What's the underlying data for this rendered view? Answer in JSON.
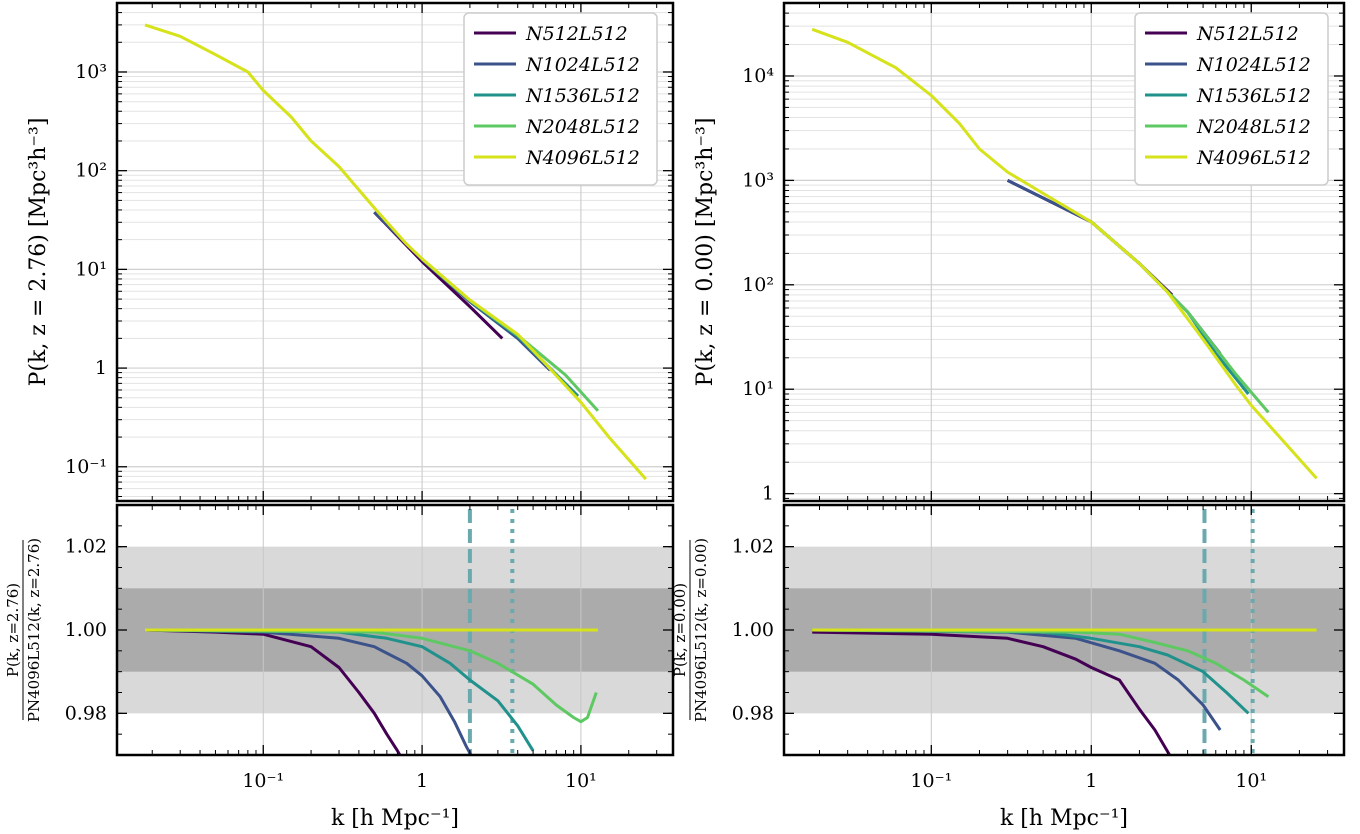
{
  "colors": {
    "N512L512": "#440154",
    "N1024L512": "#3b528b",
    "N1536L512": "#21918c",
    "N2048L512": "#5ec962",
    "N4096L512": "#d6e21a",
    "band_outer": "#d9d9d9",
    "band_inner": "#ababab",
    "vline": "#6aa9ad"
  },
  "chart_data": [
    {
      "type": "line",
      "panel": "left-top",
      "xscale": "log",
      "yscale": "log",
      "xlim": [
        0.012,
        38
      ],
      "ylim": [
        0.045,
        5000
      ],
      "ylabel": "P(k, z = 2.76) [Mpc³h⁻³]",
      "yticks": [
        {
          "v": 1000,
          "label": "10³"
        },
        {
          "v": 100,
          "label": "10²"
        },
        {
          "v": 10,
          "label": "10¹"
        },
        {
          "v": 1,
          "label": "1"
        },
        {
          "v": 0.1,
          "label": "10⁻¹"
        }
      ],
      "legend_position": "top-right",
      "series": [
        {
          "name": "N512L512",
          "k": [
            0.5,
            1,
            2,
            3.2
          ],
          "P": [
            38,
            12,
            4.2,
            2.0
          ]
        },
        {
          "name": "N1024L512",
          "k": [
            0.5,
            1,
            2,
            4,
            6.4
          ],
          "P": [
            38,
            12.6,
            4.7,
            2.0,
            0.95
          ]
        },
        {
          "name": "N1536L512",
          "k": [
            1,
            2,
            4,
            6,
            9.6
          ],
          "P": [
            12.7,
            4.8,
            2.1,
            1.1,
            0.52
          ]
        },
        {
          "name": "N2048L512",
          "k": [
            1,
            2,
            4,
            8,
            12.8
          ],
          "P": [
            12.7,
            4.85,
            2.15,
            0.85,
            0.37
          ]
        },
        {
          "name": "N4096L512",
          "k": [
            0.018,
            0.03,
            0.05,
            0.08,
            0.1,
            0.15,
            0.2,
            0.3,
            0.5,
            0.8,
            1,
            2,
            4,
            6,
            10,
            15,
            25.6
          ],
          "P": [
            3000,
            2300,
            1500,
            1000,
            650,
            350,
            200,
            110,
            42,
            18,
            12.8,
            4.9,
            2.2,
            1.1,
            0.45,
            0.2,
            0.075
          ]
        }
      ]
    },
    {
      "type": "line",
      "panel": "right-top",
      "xscale": "log",
      "yscale": "log",
      "xlim": [
        0.012,
        38
      ],
      "ylim": [
        0.85,
        50000
      ],
      "ylabel": "P(k, z = 0.00) [Mpc³h⁻³]",
      "yticks": [
        {
          "v": 10000,
          "label": "10⁴"
        },
        {
          "v": 1000,
          "label": "10³"
        },
        {
          "v": 100,
          "label": "10²"
        },
        {
          "v": 10,
          "label": "10¹"
        },
        {
          "v": 1,
          "label": "1"
        }
      ],
      "legend_position": "top-right",
      "series": [
        {
          "name": "N512L512",
          "k": [
            0.3,
            1,
            2,
            3.2
          ],
          "P": [
            1000,
            400,
            160,
            80
          ]
        },
        {
          "name": "N1024L512",
          "k": [
            0.3,
            1,
            2,
            4,
            6.4
          ],
          "P": [
            1000,
            400,
            160,
            55,
            22
          ]
        },
        {
          "name": "N1536L512",
          "k": [
            1,
            2,
            4,
            6,
            9.6
          ],
          "P": [
            400,
            160,
            55,
            22,
            9
          ]
        },
        {
          "name": "N2048L512",
          "k": [
            1,
            2,
            4,
            8,
            12.8
          ],
          "P": [
            400,
            160,
            55,
            14,
            6
          ]
        },
        {
          "name": "N4096L512",
          "k": [
            0.018,
            0.03,
            0.06,
            0.1,
            0.15,
            0.2,
            0.3,
            0.5,
            1,
            2,
            3,
            5,
            8,
            10,
            15,
            25.6
          ],
          "P": [
            28000,
            21000,
            12000,
            6500,
            3500,
            2000,
            1200,
            750,
            400,
            160,
            85,
            30,
            11,
            7,
            3.5,
            1.4
          ]
        }
      ]
    },
    {
      "type": "line",
      "panel": "left-bottom",
      "xscale": "log",
      "xlim": [
        0.012,
        38
      ],
      "ylim": [
        0.97,
        1.03
      ],
      "xlabel": "k [h Mpc⁻¹]",
      "ylabel_num": "P(k, z=2.76)",
      "ylabel_den": "PN4096L512(k, z=2.76)",
      "yticks": [
        {
          "v": 1.02,
          "label": "1.02"
        },
        {
          "v": 1.0,
          "label": "1.00"
        },
        {
          "v": 0.98,
          "label": "0.98"
        }
      ],
      "xticks": [
        {
          "v": 0.1,
          "label": "10⁻¹"
        },
        {
          "v": 1,
          "label": "1"
        },
        {
          "v": 10,
          "label": "10¹"
        }
      ],
      "bands": {
        "outer": [
          0.98,
          1.02
        ],
        "inner": [
          0.99,
          1.01
        ]
      },
      "vlines": [
        {
          "k": 2.0,
          "style": "dashed"
        },
        {
          "k": 3.7,
          "style": "dotted"
        }
      ],
      "series": [
        {
          "name": "N512L512",
          "k": [
            0.018,
            0.05,
            0.1,
            0.2,
            0.3,
            0.4,
            0.5,
            0.6,
            0.7,
            0.75
          ],
          "r": [
            1.0,
            0.9995,
            0.999,
            0.996,
            0.991,
            0.985,
            0.98,
            0.975,
            0.971,
            0.969
          ]
        },
        {
          "name": "N1024L512",
          "k": [
            0.018,
            0.1,
            0.3,
            0.5,
            0.8,
            1.0,
            1.3,
            1.6,
            1.9,
            2.1
          ],
          "r": [
            1.0,
            0.9995,
            0.998,
            0.996,
            0.992,
            0.989,
            0.984,
            0.978,
            0.972,
            0.969
          ]
        },
        {
          "name": "N1536L512",
          "k": [
            0.018,
            0.3,
            0.6,
            1.0,
            1.5,
            2.0,
            3.0,
            4.0,
            5.0
          ],
          "r": [
            1.0,
            0.9995,
            0.998,
            0.996,
            0.992,
            0.988,
            0.983,
            0.977,
            0.971
          ]
        },
        {
          "name": "N2048L512",
          "k": [
            0.018,
            0.5,
            1.0,
            2.0,
            3.0,
            5.0,
            7.0,
            9.0,
            10.0,
            11.0,
            12.5
          ],
          "r": [
            1.0,
            0.9995,
            0.998,
            0.995,
            0.992,
            0.987,
            0.982,
            0.979,
            0.978,
            0.979,
            0.985
          ]
        },
        {
          "name": "N4096L512",
          "k": [
            0.018,
            12.8
          ],
          "r": [
            1.0,
            1.0
          ]
        }
      ]
    },
    {
      "type": "line",
      "panel": "right-bottom",
      "xscale": "log",
      "xlim": [
        0.012,
        38
      ],
      "ylim": [
        0.97,
        1.03
      ],
      "xlabel": "k [h Mpc⁻¹]",
      "ylabel_num": "P(k, z=0.00)",
      "ylabel_den": "PN4096L512(k, z=0.00)",
      "yticks": [
        {
          "v": 1.02,
          "label": "1.02"
        },
        {
          "v": 1.0,
          "label": "1.00"
        },
        {
          "v": 0.98,
          "label": "0.98"
        }
      ],
      "xticks": [
        {
          "v": 0.1,
          "label": "10⁻¹"
        },
        {
          "v": 1,
          "label": "1"
        },
        {
          "v": 10,
          "label": "10¹"
        }
      ],
      "bands": {
        "outer": [
          0.98,
          1.02
        ],
        "inner": [
          0.99,
          1.01
        ]
      },
      "vlines": [
        {
          "k": 5.1,
          "style": "dashed"
        },
        {
          "k": 10.2,
          "style": "dotted"
        }
      ],
      "series": [
        {
          "name": "N512L512",
          "k": [
            0.018,
            0.1,
            0.3,
            0.5,
            0.8,
            1.0,
            1.5,
            2.0,
            2.5,
            3.2
          ],
          "r": [
            0.9995,
            0.999,
            0.998,
            0.996,
            0.993,
            0.991,
            0.988,
            0.981,
            0.976,
            0.969
          ]
        },
        {
          "name": "N1024L512",
          "k": [
            0.018,
            0.3,
            0.8,
            1.5,
            2.5,
            3.5,
            5.0,
            6.4
          ],
          "r": [
            1.0,
            0.9995,
            0.998,
            0.995,
            0.992,
            0.988,
            0.982,
            0.976
          ]
        },
        {
          "name": "N1536L512",
          "k": [
            0.018,
            0.5,
            1.0,
            2.0,
            3.0,
            5.0,
            7.0,
            9.6
          ],
          "r": [
            1.0,
            0.9995,
            0.998,
            0.996,
            0.994,
            0.99,
            0.985,
            0.98
          ]
        },
        {
          "name": "N2048L512",
          "k": [
            0.018,
            0.8,
            1.5,
            2.5,
            4.0,
            6.0,
            9.0,
            12.8
          ],
          "r": [
            1.0,
            0.9995,
            0.999,
            0.997,
            0.995,
            0.992,
            0.988,
            0.984
          ]
        },
        {
          "name": "N4096L512",
          "k": [
            0.018,
            25.6
          ],
          "r": [
            1.0,
            1.0
          ]
        }
      ]
    }
  ]
}
